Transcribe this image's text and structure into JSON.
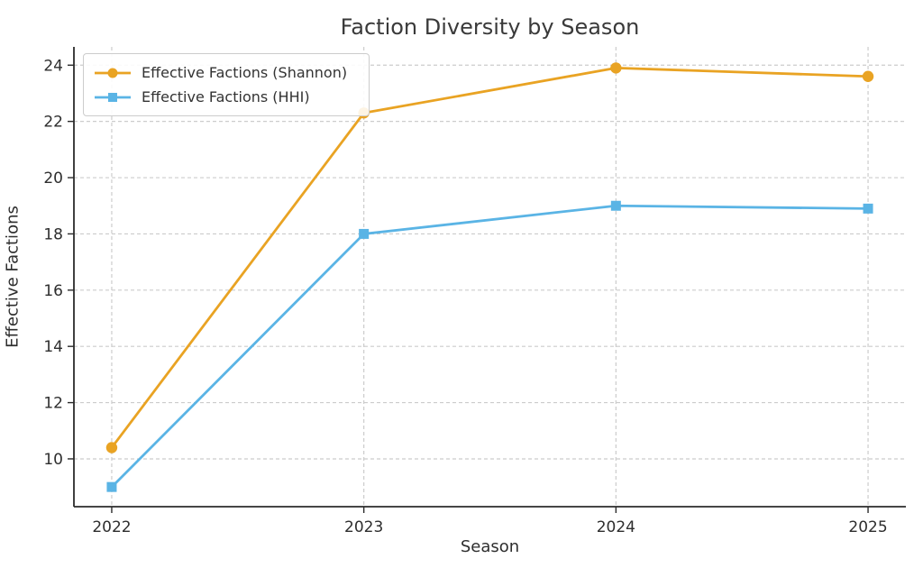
{
  "chart_data": {
    "type": "line",
    "title": "Faction Diversity by Season",
    "xlabel": "Season",
    "ylabel": "Effective Factions",
    "x": [
      2022,
      2023,
      2024,
      2025
    ],
    "series": [
      {
        "name": "Effective Factions (Shannon)",
        "color": "#E9A323",
        "marker": "circle",
        "values": [
          10.4,
          22.3,
          23.9,
          23.6
        ]
      },
      {
        "name": "Effective Factions (HHI)",
        "color": "#5AB4E5",
        "marker": "square",
        "values": [
          9.0,
          18.0,
          19.0,
          18.9
        ]
      }
    ],
    "xticks": [
      2022,
      2023,
      2024,
      2025
    ],
    "yticks": [
      10,
      12,
      14,
      16,
      18,
      20,
      22,
      24
    ],
    "xlim": [
      2021.85,
      2025.15
    ],
    "ylim": [
      8.3,
      24.65
    ],
    "grid": true,
    "legend_position": "upper left",
    "style": {
      "grid_color": "#cccccc",
      "spine_color": "#2b2b2b",
      "text_color": "#2e2e2e",
      "background": "#ffffff"
    }
  }
}
